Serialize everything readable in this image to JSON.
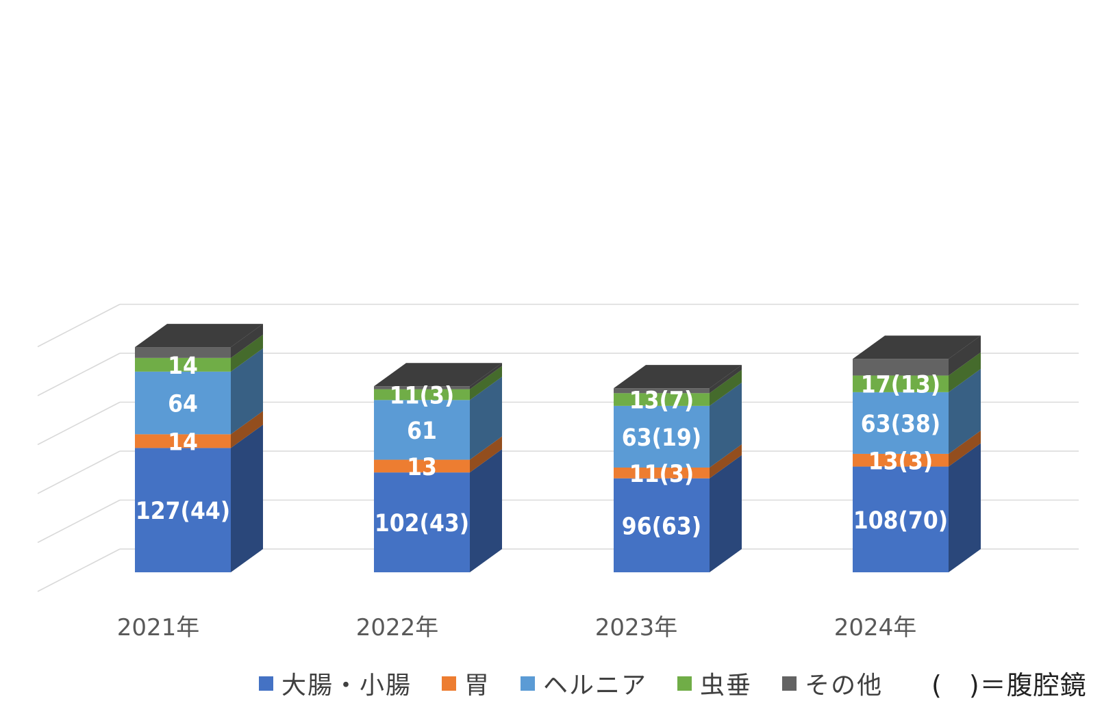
{
  "chart_data": {
    "type": "bar",
    "stacked": true,
    "style": "3d-column",
    "categories": [
      "2021年",
      "2022年",
      "2023年",
      "2024年"
    ],
    "ylim": [
      0,
      270
    ],
    "grid": true,
    "legend_position": "bottom",
    "series": [
      {
        "name": "大腸・小腸",
        "color": "#4472C4",
        "values": [
          127,
          102,
          96,
          108
        ],
        "labels": [
          "127(44)",
          "102(43)",
          "96(63)",
          "108(70)"
        ]
      },
      {
        "name": "胃",
        "color": "#ED7D31",
        "values": [
          14,
          13,
          11,
          13
        ],
        "labels": [
          "14",
          "13",
          "11(3)",
          "13(3)"
        ]
      },
      {
        "name": "ヘルニア",
        "color": "#5B9BD5",
        "values": [
          64,
          61,
          63,
          63
        ],
        "labels": [
          "64",
          "61",
          "63(19)",
          "63(38)"
        ]
      },
      {
        "name": "虫垂",
        "color": "#70AD47",
        "values": [
          14,
          11,
          13,
          17
        ],
        "labels": [
          "14",
          "11(3)",
          "13(7)",
          "17(13)"
        ]
      },
      {
        "name": "その他",
        "color": "#636363",
        "values": [
          11,
          3,
          5,
          17
        ],
        "labels": [
          "",
          "",
          "",
          ""
        ]
      }
    ],
    "note": "(　)＝腹腔鏡"
  }
}
